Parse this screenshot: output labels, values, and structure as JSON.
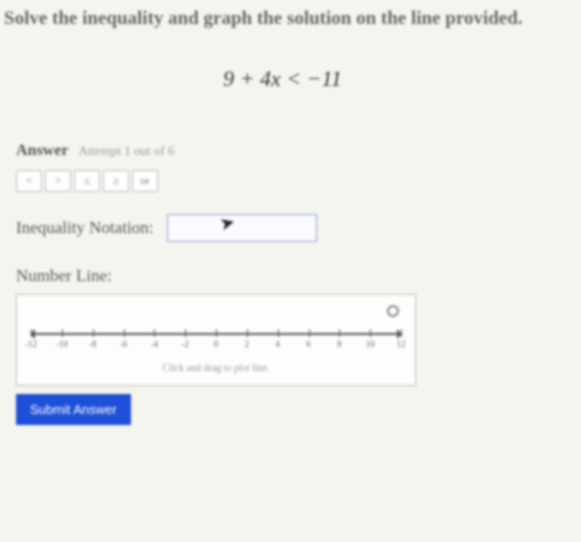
{
  "title": "Solve the inequality and graph the solution on the line provided.",
  "equation": "9 + 4x < −11",
  "answer": {
    "label": "Answer",
    "attempt": "Attempt 1 out of 6"
  },
  "tool_buttons": [
    {
      "glyph": "<",
      "name": "lt"
    },
    {
      "glyph": ">",
      "name": "gt"
    },
    {
      "glyph": "≤",
      "name": "le"
    },
    {
      "glyph": "≥",
      "name": "ge"
    },
    {
      "glyph": "or",
      "name": "or"
    }
  ],
  "inequality": {
    "label": "Inequality Notation:",
    "value": ""
  },
  "numberline": {
    "label": "Number Line:",
    "hint": "Click and drag to plot line.",
    "range": {
      "min": -12,
      "max": 12,
      "step": 2
    },
    "axis_color": "#555555",
    "box_border": "#bbbbbb",
    "tick_labels": [
      "-12",
      "-10",
      "-8",
      "-6",
      "-4",
      "-2",
      "0",
      "2",
      "4",
      "6",
      "8",
      "10",
      "12"
    ]
  },
  "submit_label": "Submit Answer",
  "colors": {
    "background": "#f5f5f0",
    "text": "#555555",
    "accent": "#1d4fd7",
    "input_border": "#8aa0d0"
  }
}
